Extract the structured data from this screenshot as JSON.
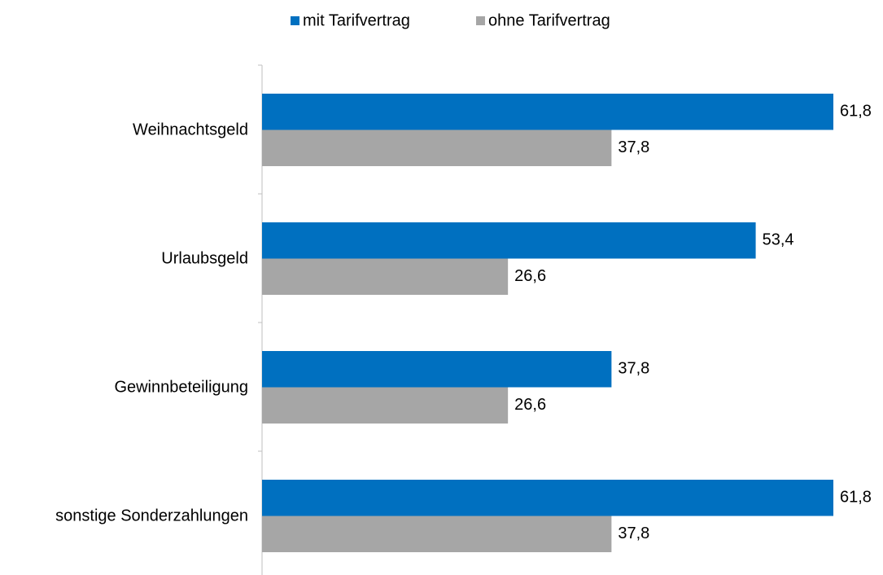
{
  "chart_data": {
    "type": "bar",
    "orientation": "horizontal",
    "categories": [
      "Weihnachtsgeld",
      "Urlaubsgeld",
      "Gewinnbeteiligung",
      "sonstige Sonderzahlungen"
    ],
    "series": [
      {
        "name": "mit Tarifvertrag",
        "color": "#0070c0",
        "values": [
          61.8,
          53.4,
          37.8,
          61.8
        ],
        "value_labels": [
          "61,8",
          "53,4",
          "37,8",
          "61,8"
        ]
      },
      {
        "name": "ohne Tarifvertrag",
        "color": "#a6a6a6",
        "values": [
          37.8,
          26.6,
          26.6,
          37.8
        ],
        "value_labels": [
          "37,8",
          "26,6",
          "26,6",
          "37,8"
        ]
      }
    ],
    "legend": "top"
  }
}
